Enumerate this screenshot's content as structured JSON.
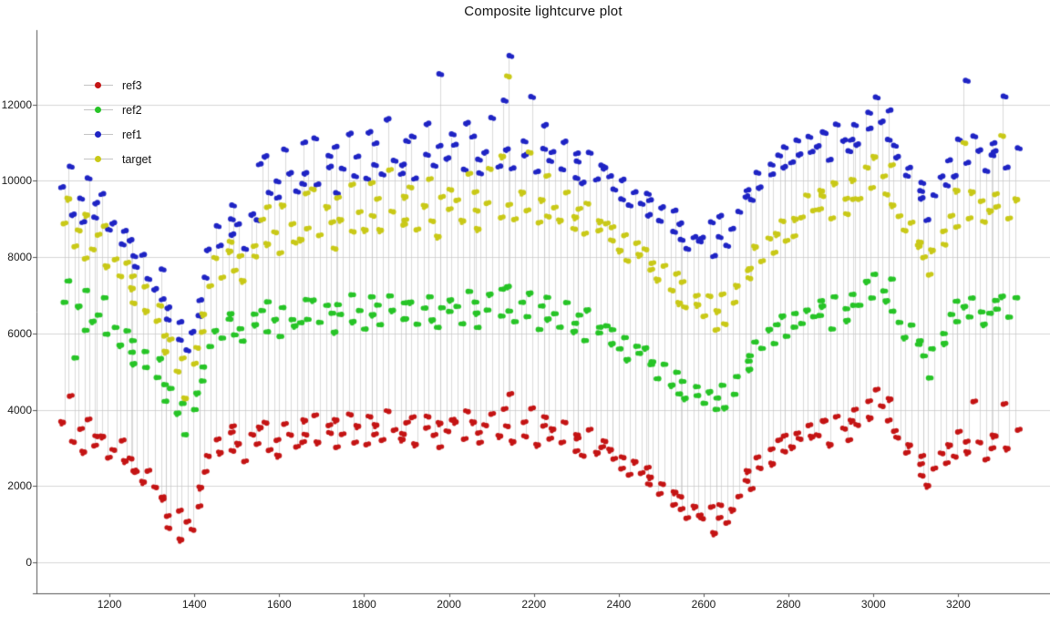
{
  "chart_data": {
    "type": "scatter",
    "title": "Composite lightcurve plot",
    "xlabel": "",
    "ylabel": "",
    "legend_position": "top-left",
    "grid": "horizontal",
    "xlim": [
      1028,
      3416
    ],
    "ylim": [
      -812,
      13950
    ],
    "x_ticks": [
      1200,
      1400,
      1600,
      1800,
      2000,
      2200,
      2400,
      2600,
      2800,
      3000,
      3200
    ],
    "y_ticks": [
      0,
      2000,
      4000,
      6000,
      8000,
      10000,
      12000
    ],
    "axis_color": "#555555",
    "grid_color": "#d6d6d6",
    "connector_color": "#c9c9c9",
    "text_color": "#1a1a1a",
    "x": [
      1102,
      1108,
      1121,
      1126,
      1139,
      1148,
      1163,
      1172,
      1186,
      1198,
      1216,
      1224,
      1237,
      1245,
      1259,
      1268,
      1282,
      1291,
      1304,
      1318,
      1326,
      1339,
      1348,
      1361,
      1370,
      1383,
      1392,
      1405,
      1419,
      1428,
      1441,
      1450,
      1463,
      1477,
      1486,
      1499,
      1508,
      1521,
      1535,
      1544,
      1557,
      1566,
      1579,
      1593,
      1602,
      1615,
      1624,
      1637,
      1651,
      1660,
      1673,
      1682,
      1695,
      1709,
      1718,
      1731,
      1740,
      1753,
      1767,
      1776,
      1789,
      1798,
      1811,
      1825,
      1834,
      1847,
      1856,
      1869,
      1883,
      1892,
      1905,
      1914,
      1927,
      1941,
      1950,
      1963,
      1972,
      1985,
      1999,
      2008,
      2021,
      2030,
      2043,
      2057,
      2066,
      2079,
      2088,
      2101,
      2115,
      2124,
      2137,
      2146,
      2159,
      2173,
      2182,
      2195,
      2204,
      2217,
      2231,
      2240,
      2253,
      2262,
      2275,
      2289,
      2298,
      2311,
      2320,
      2333,
      2347,
      2356,
      2369,
      2378,
      2391,
      2405,
      2414,
      2427,
      2436,
      2449,
      2463,
      2472,
      2485,
      2494,
      2507,
      2521,
      2530,
      2543,
      2552,
      2565,
      2579,
      2588,
      2601,
      2610,
      2623,
      2637,
      2646,
      2659,
      2668,
      2681,
      2695,
      2704,
      2717,
      2726,
      2739,
      2753,
      2762,
      2775,
      2784,
      2797,
      2811,
      2820,
      2833,
      2842,
      2855,
      2869,
      2878,
      2891,
      2900,
      2913,
      2927,
      2936,
      2949,
      2958,
      2971,
      2985,
      2994,
      3007,
      3016,
      3029,
      3043,
      3052,
      3065,
      3074,
      3087,
      3101,
      3110,
      3123,
      3132,
      3145,
      3159,
      3168,
      3181,
      3190,
      3203,
      3217,
      3226,
      3239,
      3248,
      3261,
      3275,
      3284,
      3297,
      3306,
      3319,
      3333
    ],
    "series": [
      {
        "name": "ref3",
        "color": "#c41414",
        "values": [
          3620,
          4330,
          3150,
          3510,
          2940,
          3690,
          3270,
          3050,
          3320,
          2780,
          2890,
          3160,
          2650,
          2420,
          2760,
          2310,
          2080,
          2390,
          1980,
          1750,
          1620,
          1180,
          890,
          1370,
          640,
          1010,
          820,
          1460,
          1980,
          2410,
          2730,
          3190,
          2870,
          3420,
          2960,
          3510,
          3080,
          2640,
          3360,
          3140,
          3480,
          2910,
          3650,
          3220,
          2840,
          3570,
          3310,
          3020,
          3740,
          3190,
          3290,
          3820,
          3140,
          3610,
          3430,
          2960,
          3700,
          3350,
          3890,
          3180,
          3520,
          3060,
          3810,
          3370,
          3640,
          3150,
          3930,
          3460,
          3240,
          3700,
          3310,
          3770,
          3090,
          3540,
          3860,
          3280,
          3620,
          3010,
          3450,
          3780,
          3630,
          3200,
          3950,
          3410,
          3720,
          3080,
          3560,
          3880,
          3330,
          4060,
          3510,
          4380,
          3160,
          3690,
          3340,
          3980,
          3050,
          3570,
          3820,
          3280,
          3440,
          3110,
          3660,
          2930,
          3380,
          3190,
          2760,
          3470,
          2890,
          3060,
          3120,
          2680,
          2950,
          2470,
          2790,
          2240,
          2610,
          2330,
          2060,
          2520,
          2180,
          1760,
          2040,
          1520,
          1880,
          1340,
          1690,
          1150,
          1480,
          1270,
          1090,
          1420,
          760,
          1180,
          1540,
          980,
          1350,
          1720,
          2150,
          1960,
          2340,
          2720,
          2460,
          2980,
          2630,
          3150,
          2870,
          3310,
          3040,
          3420,
          3180,
          3560,
          3290,
          3730,
          3370,
          3640,
          3060,
          3810,
          3520,
          3240,
          3660,
          3970,
          3590,
          4240,
          3830,
          4470,
          4060,
          3710,
          4300,
          3480,
          3210,
          2840,
          3070,
          2590,
          2310,
          2730,
          1980,
          2450,
          2870,
          2640,
          3020,
          3390,
          2760,
          3180,
          2930,
          4160,
          3110,
          2690,
          3340,
          3030,
          3260,
          4120,
          2980,
          3490
        ]
      },
      {
        "name": "ref2",
        "color": "#27c427",
        "values": [
          6840,
          7420,
          5310,
          6690,
          6080,
          7150,
          6530,
          6270,
          6910,
          5980,
          6180,
          5740,
          6020,
          5480,
          5810,
          5230,
          5570,
          5060,
          4820,
          5340,
          4680,
          4270,
          4510,
          3890,
          4160,
          3370,
          4050,
          4390,
          4730,
          5120,
          5680,
          6120,
          5830,
          6350,
          5960,
          6540,
          6170,
          5750,
          6480,
          6230,
          6620,
          6090,
          6780,
          6340,
          5920,
          6700,
          6410,
          6150,
          6860,
          6280,
          6390,
          6920,
          6240,
          6710,
          6530,
          6060,
          6800,
          6450,
          6990,
          6310,
          6620,
          6160,
          6910,
          6470,
          6740,
          6250,
          7030,
          6560,
          6340,
          6800,
          6410,
          6870,
          6190,
          6640,
          6960,
          6380,
          6720,
          6110,
          6550,
          6880,
          6730,
          6300,
          7050,
          6510,
          6820,
          6180,
          6660,
          6980,
          6430,
          7160,
          6610,
          7280,
          6260,
          6790,
          6440,
          7080,
          6150,
          6670,
          6920,
          6380,
          6540,
          6210,
          6760,
          6030,
          6480,
          6290,
          5860,
          6570,
          5990,
          6160,
          6220,
          5780,
          6050,
          5570,
          5890,
          5340,
          5710,
          5430,
          5160,
          5620,
          5280,
          4860,
          5140,
          4620,
          4980,
          4440,
          4790,
          4250,
          4580,
          4370,
          4190,
          4520,
          3960,
          4280,
          4640,
          4080,
          4450,
          4820,
          5250,
          5060,
          5440,
          5820,
          5560,
          6080,
          5730,
          6250,
          5970,
          6410,
          6140,
          6520,
          6280,
          6660,
          6390,
          6830,
          6470,
          6740,
          6160,
          6910,
          6620,
          6340,
          6760,
          7070,
          6690,
          7340,
          6930,
          7570,
          7160,
          6810,
          7400,
          6580,
          6310,
          5940,
          6170,
          5690,
          5410,
          5830,
          4880,
          5550,
          5970,
          5740,
          6520,
          6890,
          6260,
          6680,
          6430,
          6950,
          6610,
          6190,
          6840,
          6530,
          6660,
          7020,
          6380,
          6910
        ]
      },
      {
        "name": "ref1",
        "color": "#1f24c4",
        "values": [
          9820,
          10380,
          9150,
          9590,
          8880,
          10050,
          9430,
          9070,
          9710,
          8680,
          8880,
          8340,
          8720,
          8080,
          8410,
          7730,
          8070,
          7460,
          7220,
          7640,
          6880,
          6370,
          6710,
          5890,
          6260,
          5540,
          6050,
          6490,
          6930,
          7420,
          8180,
          8820,
          8330,
          9050,
          8560,
          9340,
          8870,
          8250,
          9180,
          8930,
          10420,
          9690,
          10680,
          10040,
          9520,
          10800,
          10210,
          9750,
          11060,
          9880,
          10190,
          11120,
          9940,
          10710,
          10330,
          9660,
          10900,
          10350,
          11290,
          10080,
          10620,
          10060,
          11310,
          10470,
          10940,
          10150,
          11630,
          10560,
          10240,
          11000,
          10410,
          11170,
          10090,
          10740,
          11460,
          10380,
          10920,
          12830,
          10650,
          11180,
          10930,
          10300,
          11550,
          10610,
          11120,
          10180,
          10760,
          11680,
          10430,
          12060,
          10810,
          13280,
          10360,
          11090,
          10640,
          12180,
          10250,
          10870,
          11520,
          10480,
          10740,
          10310,
          11060,
          10130,
          10680,
          10490,
          9960,
          10770,
          10090,
          10360,
          10320,
          9780,
          10150,
          9570,
          9990,
          9340,
          9710,
          9430,
          9160,
          9620,
          9480,
          8960,
          9340,
          8720,
          9180,
          8440,
          8890,
          8250,
          8580,
          8370,
          8490,
          8920,
          8060,
          8580,
          9040,
          8280,
          8750,
          9220,
          9650,
          9460,
          9740,
          10220,
          9860,
          10480,
          10130,
          10650,
          10370,
          10910,
          10540,
          11020,
          10680,
          11160,
          10790,
          11330,
          10870,
          11240,
          10560,
          11510,
          11120,
          10740,
          11060,
          11470,
          10990,
          11840,
          11330,
          12170,
          11560,
          11110,
          11900,
          10880,
          10610,
          10140,
          10370,
          9790,
          9510,
          9930,
          8980,
          9650,
          10170,
          9840,
          10520,
          11090,
          10160,
          12680,
          10430,
          11150,
          10810,
          10290,
          11040,
          10630,
          10760,
          12220,
          10380,
          10910
        ]
      },
      {
        "name": "target",
        "color": "#c9c918",
        "values": [
          8920,
          9480,
          8250,
          8690,
          7980,
          9150,
          8530,
          8170,
          8810,
          7780,
          7980,
          7440,
          7820,
          7180,
          7510,
          6830,
          7170,
          6560,
          6320,
          6740,
          5980,
          5470,
          5810,
          4990,
          5360,
          4340,
          5150,
          5590,
          6030,
          6520,
          7280,
          7920,
          7430,
          8150,
          7660,
          8440,
          7970,
          7350,
          8280,
          8030,
          9020,
          8290,
          9280,
          8640,
          8120,
          9400,
          8810,
          8350,
          9660,
          8480,
          8790,
          9720,
          8540,
          9310,
          8930,
          8260,
          9500,
          8950,
          9890,
          8680,
          9220,
          8660,
          9910,
          9070,
          9540,
          8750,
          10230,
          9160,
          8840,
          9600,
          9010,
          9770,
          8690,
          9340,
          10060,
          8980,
          9520,
          8510,
          9250,
          9780,
          9530,
          8900,
          10150,
          9210,
          9720,
          8780,
          9360,
          10280,
          9030,
          10660,
          9410,
          12680,
          8960,
          9690,
          9240,
          10780,
          8850,
          9470,
          10120,
          9080,
          9340,
          8910,
          9660,
          8730,
          9280,
          9090,
          8560,
          9370,
          8690,
          8960,
          8920,
          8380,
          8750,
          8170,
          8590,
          7940,
          8310,
          8030,
          7660,
          8220,
          7880,
          7360,
          7740,
          7120,
          7580,
          6840,
          7290,
          6650,
          6980,
          6770,
          6490,
          6920,
          6060,
          6580,
          7040,
          6280,
          6750,
          7220,
          7650,
          7460,
          7740,
          8220,
          7860,
          8480,
          8130,
          8650,
          8370,
          8910,
          8540,
          9020,
          9080,
          9560,
          9190,
          9730,
          9270,
          9640,
          8960,
          9910,
          9520,
          9140,
          9560,
          9970,
          9490,
          10340,
          9830,
          10670,
          10060,
          9610,
          10400,
          9380,
          9110,
          8640,
          8870,
          8290,
          8010,
          8430,
          7480,
          8150,
          8670,
          8340,
          9120,
          9690,
          8760,
          10980,
          9030,
          9750,
          9410,
          8890,
          9640,
          9230,
          9360,
          11120,
          8980,
          9510
        ]
      }
    ],
    "legend_order": [
      "ref3",
      "ref2",
      "ref1",
      "target"
    ]
  }
}
